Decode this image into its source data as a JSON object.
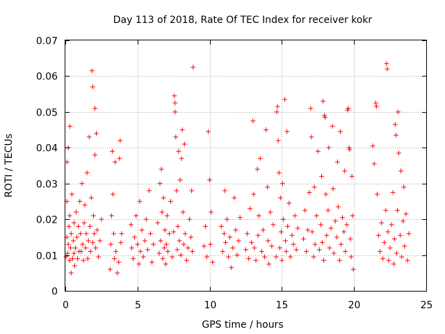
{
  "chart_data": {
    "type": "scatter",
    "title": "Day 113 of 2018, Rate Of TEC Index for receiver kokr",
    "xlabel": "GPS time / hours",
    "ylabel": "ROTI / TECUs",
    "xlim": [
      0,
      25
    ],
    "ylim": [
      0,
      0.07
    ],
    "xticks": [
      0,
      5,
      10,
      15,
      20,
      25
    ],
    "xtick_labels": [
      "0",
      "5",
      "10",
      "15",
      "20",
      "25"
    ],
    "yticks": [
      0,
      0.01,
      0.02,
      0.03,
      0.04,
      0.05,
      0.06,
      0.07
    ],
    "ytick_labels": [
      "0",
      "0.01",
      "0.02",
      "0.03",
      "0.04",
      "0.05",
      "0.06",
      "0.07"
    ],
    "grid": true,
    "marker": "+",
    "color": "#ff0000",
    "series": [
      {
        "name": "ROTI",
        "points": [
          [
            0.05,
            0.0095
          ],
          [
            0.1,
            0.015
          ],
          [
            0.1,
            0.025
          ],
          [
            0.12,
            0.036
          ],
          [
            0.15,
            0.0105
          ],
          [
            0.2,
            0.013
          ],
          [
            0.2,
            0.04
          ],
          [
            0.25,
            0.018
          ],
          [
            0.3,
            0.0085
          ],
          [
            0.3,
            0.021
          ],
          [
            0.32,
            0.046
          ],
          [
            0.35,
            0.012
          ],
          [
            0.4,
            0.005
          ],
          [
            0.4,
            0.016
          ],
          [
            0.45,
            0.027
          ],
          [
            0.5,
            0.009
          ],
          [
            0.55,
            0.014
          ],
          [
            0.6,
            0.0105
          ],
          [
            0.6,
            0.019
          ],
          [
            0.65,
            0.007
          ],
          [
            0.7,
            0.012
          ],
          [
            0.75,
            0.022
          ],
          [
            0.8,
            0.015
          ],
          [
            0.85,
            0.009
          ],
          [
            0.9,
            0.018
          ],
          [
            0.95,
            0.011
          ],
          [
            1.0,
            0.025
          ],
          [
            1.05,
            0.016
          ],
          [
            1.1,
            0.011
          ],
          [
            1.15,
            0.03
          ],
          [
            1.2,
            0.013
          ],
          [
            1.25,
            0.0085
          ],
          [
            1.3,
            0.019
          ],
          [
            1.35,
            0.024
          ],
          [
            1.4,
            0.012
          ],
          [
            1.45,
            0.016
          ],
          [
            1.5,
            0.033
          ],
          [
            1.55,
            0.009
          ],
          [
            1.6,
            0.014
          ],
          [
            1.65,
            0.043
          ],
          [
            1.7,
            0.018
          ],
          [
            1.75,
            0.011
          ],
          [
            1.8,
            0.026
          ],
          [
            1.85,
            0.0615
          ],
          [
            1.9,
            0.057
          ],
          [
            1.9,
            0.0135
          ],
          [
            1.95,
            0.021
          ],
          [
            2.0,
            0.016
          ],
          [
            2.05,
            0.038
          ],
          [
            2.05,
            0.051
          ],
          [
            2.1,
            0.012
          ],
          [
            2.15,
            0.044
          ],
          [
            2.2,
            0.017
          ],
          [
            2.3,
            0.0095
          ],
          [
            2.4,
            0.014
          ],
          [
            2.5,
            0.02
          ],
          [
            3.1,
            0.006
          ],
          [
            3.15,
            0.013
          ],
          [
            3.2,
            0.021
          ],
          [
            3.25,
            0.039
          ],
          [
            3.3,
            0.027
          ],
          [
            3.35,
            0.016
          ],
          [
            3.4,
            0.009
          ],
          [
            3.45,
            0.036
          ],
          [
            3.5,
            0.011
          ],
          [
            3.6,
            0.005
          ],
          [
            3.7,
            0.008
          ],
          [
            3.75,
            0.037
          ],
          [
            3.8,
            0.042
          ],
          [
            3.85,
            0.0135
          ],
          [
            3.9,
            0.016
          ],
          [
            4.55,
            0.0185
          ],
          [
            4.6,
            0.012
          ],
          [
            4.7,
            0.009
          ],
          [
            4.8,
            0.015
          ],
          [
            4.9,
            0.021
          ],
          [
            5.0,
            0.013
          ],
          [
            5.1,
            0.0075
          ],
          [
            5.15,
            0.025
          ],
          [
            5.2,
            0.011
          ],
          [
            5.3,
            0.017
          ],
          [
            5.4,
            0.0095
          ],
          [
            5.5,
            0.014
          ],
          [
            5.6,
            0.02
          ],
          [
            5.7,
            0.0115
          ],
          [
            5.8,
            0.028
          ],
          [
            5.9,
            0.016
          ],
          [
            6.0,
            0.008
          ],
          [
            6.1,
            0.013
          ],
          [
            6.4,
            0.019
          ],
          [
            6.5,
            0.0105
          ],
          [
            6.55,
            0.03
          ],
          [
            6.6,
            0.014
          ],
          [
            6.65,
            0.034
          ],
          [
            6.7,
            0.022
          ],
          [
            6.75,
            0.009
          ],
          [
            6.8,
            0.026
          ],
          [
            6.85,
            0.012
          ],
          [
            6.9,
            0.017
          ],
          [
            6.95,
            0.0075
          ],
          [
            7.0,
            0.013
          ],
          [
            7.05,
            0.021
          ],
          [
            7.1,
            0.011
          ],
          [
            7.2,
            0.016
          ],
          [
            7.3,
            0.025
          ],
          [
            7.4,
            0.0095
          ],
          [
            7.5,
            0.0165
          ],
          [
            7.55,
            0.0545
          ],
          [
            7.6,
            0.0525
          ],
          [
            7.6,
            0.05
          ],
          [
            7.65,
            0.043
          ],
          [
            7.7,
            0.028
          ],
          [
            7.75,
            0.0115
          ],
          [
            7.8,
            0.018
          ],
          [
            7.85,
            0.039
          ],
          [
            7.9,
            0.014
          ],
          [
            7.95,
            0.031
          ],
          [
            8.0,
            0.01
          ],
          [
            8.05,
            0.037
          ],
          [
            8.1,
            0.045
          ],
          [
            8.15,
            0.022
          ],
          [
            8.2,
            0.013
          ],
          [
            8.25,
            0.041
          ],
          [
            8.3,
            0.016
          ],
          [
            8.4,
            0.0085
          ],
          [
            8.5,
            0.012
          ],
          [
            8.6,
            0.02
          ],
          [
            8.7,
            0.015
          ],
          [
            8.75,
            0.028
          ],
          [
            8.8,
            0.011
          ],
          [
            8.85,
            0.0625
          ],
          [
            9.6,
            0.0125
          ],
          [
            9.7,
            0.018
          ],
          [
            9.8,
            0.0095
          ],
          [
            9.9,
            0.0445
          ],
          [
            10.0,
            0.031
          ],
          [
            10.05,
            0.013
          ],
          [
            10.1,
            0.022
          ],
          [
            10.2,
            0.008
          ],
          [
            10.8,
            0.018
          ],
          [
            10.9,
            0.011
          ],
          [
            11.0,
            0.016
          ],
          [
            11.05,
            0.028
          ],
          [
            11.1,
            0.0135
          ],
          [
            11.2,
            0.02
          ],
          [
            11.3,
            0.0095
          ],
          [
            11.4,
            0.015
          ],
          [
            11.5,
            0.0065
          ],
          [
            11.6,
            0.012
          ],
          [
            11.7,
            0.026
          ],
          [
            11.8,
            0.017
          ],
          [
            11.9,
            0.01
          ],
          [
            12.0,
            0.014
          ],
          [
            12.1,
            0.0205
          ],
          [
            12.5,
            0.0115
          ],
          [
            12.6,
            0.016
          ],
          [
            12.7,
            0.009
          ],
          [
            12.8,
            0.023
          ],
          [
            12.9,
            0.0135
          ],
          [
            13.0,
            0.0475
          ],
          [
            13.05,
            0.027
          ],
          [
            13.1,
            0.012
          ],
          [
            13.2,
            0.0085
          ],
          [
            13.3,
            0.034
          ],
          [
            13.35,
            0.0155
          ],
          [
            13.4,
            0.021
          ],
          [
            13.5,
            0.037
          ],
          [
            13.6,
            0.011
          ],
          [
            13.7,
            0.017
          ],
          [
            13.8,
            0.0095
          ],
          [
            13.9,
            0.045
          ],
          [
            14.0,
            0.029
          ],
          [
            14.05,
            0.014
          ],
          [
            14.1,
            0.0075
          ],
          [
            14.2,
            0.022
          ],
          [
            14.3,
            0.0125
          ],
          [
            14.4,
            0.0185
          ],
          [
            14.6,
            0.0095
          ],
          [
            14.65,
            0.05
          ],
          [
            14.7,
            0.0515
          ],
          [
            14.75,
            0.042
          ],
          [
            14.8,
            0.033
          ],
          [
            14.85,
            0.012
          ],
          [
            14.9,
            0.026
          ],
          [
            14.95,
            0.0165
          ],
          [
            15.0,
            0.0085
          ],
          [
            15.05,
            0.03
          ],
          [
            15.1,
            0.02
          ],
          [
            15.2,
            0.0535
          ],
          [
            15.25,
            0.014
          ],
          [
            15.3,
            0.011
          ],
          [
            15.35,
            0.0445
          ],
          [
            15.4,
            0.018
          ],
          [
            15.5,
            0.0245
          ],
          [
            15.6,
            0.0095
          ],
          [
            15.7,
            0.0155
          ],
          [
            15.8,
            0.013
          ],
          [
            15.9,
            0.021
          ],
          [
            16.0,
            0.0115
          ],
          [
            16.1,
            0.0175
          ],
          [
            16.5,
            0.0145
          ],
          [
            16.6,
            0.0225
          ],
          [
            16.7,
            0.011
          ],
          [
            16.8,
            0.017
          ],
          [
            16.9,
            0.0275
          ],
          [
            17.0,
            0.051
          ],
          [
            17.05,
            0.043
          ],
          [
            17.1,
            0.0165
          ],
          [
            17.2,
            0.0095
          ],
          [
            17.25,
            0.029
          ],
          [
            17.3,
            0.013
          ],
          [
            17.4,
            0.021
          ],
          [
            17.5,
            0.039
          ],
          [
            17.6,
            0.0115
          ],
          [
            17.7,
            0.0185
          ],
          [
            17.75,
            0.032
          ],
          [
            17.8,
            0.0135
          ],
          [
            17.85,
            0.053
          ],
          [
            17.9,
            0.0085
          ],
          [
            17.95,
            0.049
          ],
          [
            18.0,
            0.0485
          ],
          [
            18.05,
            0.027
          ],
          [
            18.1,
            0.0155
          ],
          [
            18.2,
            0.0225
          ],
          [
            18.25,
            0.04
          ],
          [
            18.3,
            0.012
          ],
          [
            18.4,
            0.0175
          ],
          [
            18.5,
            0.046
          ],
          [
            18.55,
            0.0285
          ],
          [
            18.6,
            0.0105
          ],
          [
            18.7,
            0.0195
          ],
          [
            18.8,
            0.015
          ],
          [
            18.85,
            0.036
          ],
          [
            18.9,
            0.0235
          ],
          [
            19.0,
            0.0085
          ],
          [
            19.05,
            0.0445
          ],
          [
            19.1,
            0.013
          ],
          [
            19.2,
            0.0205
          ],
          [
            19.3,
            0.0165
          ],
          [
            19.35,
            0.0335
          ],
          [
            19.4,
            0.011
          ],
          [
            19.5,
            0.0185
          ],
          [
            19.55,
            0.0505
          ],
          [
            19.6,
            0.051
          ],
          [
            19.65,
            0.04
          ],
          [
            19.7,
            0.0395
          ],
          [
            19.75,
            0.0145
          ],
          [
            19.8,
            0.0095
          ],
          [
            19.85,
            0.032
          ],
          [
            19.9,
            0.021
          ],
          [
            19.95,
            0.006
          ],
          [
            21.3,
            0.0405
          ],
          [
            21.4,
            0.0355
          ],
          [
            21.5,
            0.0525
          ],
          [
            21.55,
            0.0515
          ],
          [
            21.6,
            0.027
          ],
          [
            21.7,
            0.0155
          ],
          [
            21.8,
            0.011
          ],
          [
            21.9,
            0.019
          ],
          [
            22.0,
            0.009
          ],
          [
            22.1,
            0.0135
          ],
          [
            22.2,
            0.0225
          ],
          [
            22.25,
            0.0635
          ],
          [
            22.3,
            0.062
          ],
          [
            22.35,
            0.0165
          ],
          [
            22.4,
            0.0085
          ],
          [
            22.5,
            0.012
          ],
          [
            22.6,
            0.0185
          ],
          [
            22.7,
            0.0275
          ],
          [
            22.75,
            0.0075
          ],
          [
            22.8,
            0.0145
          ],
          [
            22.85,
            0.0465
          ],
          [
            22.9,
            0.0435
          ],
          [
            22.95,
            0.0105
          ],
          [
            23.0,
            0.0225
          ],
          [
            23.05,
            0.05
          ],
          [
            23.1,
            0.0385
          ],
          [
            23.2,
            0.0155
          ],
          [
            23.25,
            0.0335
          ],
          [
            23.3,
            0.0095
          ],
          [
            23.4,
            0.0195
          ],
          [
            23.45,
            0.029
          ],
          [
            23.5,
            0.0125
          ],
          [
            23.6,
            0.0215
          ],
          [
            23.7,
            0.0085
          ],
          [
            23.8,
            0.016
          ]
        ]
      }
    ]
  }
}
